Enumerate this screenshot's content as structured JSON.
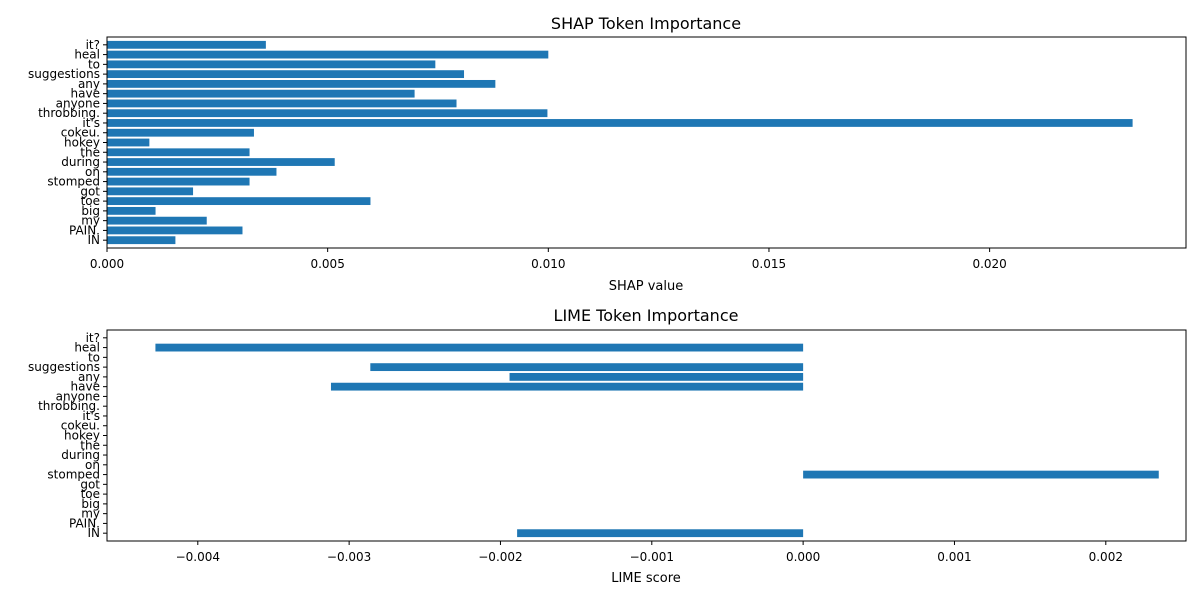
{
  "chart_data": [
    {
      "type": "bar",
      "orientation": "horizontal",
      "title": "SHAP Token Importance",
      "xlabel": "SHAP value",
      "ylabel": "",
      "xlim": [
        0,
        0.02445
      ],
      "xticks": [
        "0.000",
        "0.005",
        "0.010",
        "0.015",
        "0.020"
      ],
      "xtick_values": [
        0,
        0.005,
        0.01,
        0.015,
        0.02
      ],
      "categories": [
        "IN",
        "PAIN.",
        "my",
        "big",
        "toe",
        "got",
        "stomped",
        "on",
        "during",
        "the",
        "hokey",
        "cokeu.",
        "it's",
        "throbbing.",
        "anyone",
        "have",
        "any",
        "suggestions",
        "to",
        "heal",
        "it?"
      ],
      "values": [
        0.00155,
        0.00307,
        0.00226,
        0.0011,
        0.00597,
        0.00195,
        0.00323,
        0.00384,
        0.00516,
        0.00323,
        0.00096,
        0.00333,
        0.02324,
        0.00998,
        0.00792,
        0.00697,
        0.0088,
        0.00809,
        0.00744,
        0.01,
        0.0036
      ],
      "color": "#1f77b4",
      "grid": false
    },
    {
      "type": "bar",
      "orientation": "horizontal",
      "title": "LIME Token Importance",
      "xlabel": "LIME score",
      "ylabel": "",
      "xlim": [
        -0.0046,
        0.00253
      ],
      "xticks": [
        "−0.004",
        "−0.003",
        "−0.002",
        "−0.001",
        "0.000",
        "0.001",
        "0.002"
      ],
      "xtick_values": [
        -0.004,
        -0.003,
        -0.002,
        -0.001,
        0,
        0.001,
        0.002
      ],
      "categories": [
        "IN",
        "PAIN.",
        "my",
        "big",
        "toe",
        "got",
        "stomped",
        "on",
        "during",
        "the",
        "hokey",
        "cokeu.",
        "it's",
        "throbbing.",
        "anyone",
        "have",
        "any",
        "suggestions",
        "to",
        "heal",
        "it?"
      ],
      "values": [
        -0.00189,
        0,
        0,
        0,
        0,
        0,
        0.00235,
        0,
        0,
        0,
        0,
        0,
        0,
        0,
        0,
        -0.00312,
        -0.00194,
        -0.00286,
        0,
        -0.00428,
        0
      ],
      "color": "#1f77b4",
      "grid": false
    }
  ]
}
